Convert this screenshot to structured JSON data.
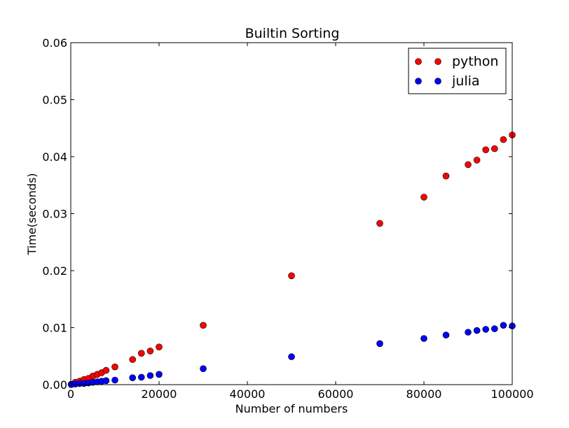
{
  "chart_data": {
    "type": "scatter",
    "title": "Builtin Sorting",
    "xlabel": "Number of numbers",
    "ylabel": "Time(seconds)",
    "xlim": [
      0,
      100000
    ],
    "ylim": [
      0,
      0.06
    ],
    "xticks": [
      0,
      20000,
      40000,
      60000,
      80000,
      100000
    ],
    "xtick_labels": [
      "0",
      "20000",
      "40000",
      "60000",
      "80000",
      "100000"
    ],
    "yticks": [
      0,
      0.01,
      0.02,
      0.03,
      0.04,
      0.05,
      0.06
    ],
    "ytick_labels": [
      "0.00",
      "0.01",
      "0.02",
      "0.03",
      "0.04",
      "0.05",
      "0.06"
    ],
    "grid": false,
    "legend": "top-right",
    "series": [
      {
        "name": "python",
        "color": "#ff0000",
        "x": [
          100,
          1000,
          2000,
          3000,
          4000,
          5000,
          6000,
          7000,
          8000,
          10000,
          14000,
          16000,
          18000,
          20000,
          30000,
          50000,
          70000,
          80000,
          85000,
          90000,
          92000,
          94000,
          96000,
          98000,
          100000
        ],
        "y": [
          5e-05,
          0.0004,
          0.0006,
          0.0009,
          0.0011,
          0.0015,
          0.0018,
          0.0021,
          0.0025,
          0.0031,
          0.0044,
          0.0055,
          0.0059,
          0.0066,
          0.0104,
          0.0191,
          0.0283,
          0.0329,
          0.0366,
          0.0386,
          0.0394,
          0.0412,
          0.0414,
          0.043,
          0.0438
        ]
      },
      {
        "name": "julia",
        "color": "#0000ff",
        "x": [
          100,
          1000,
          2000,
          3000,
          4000,
          5000,
          6000,
          7000,
          8000,
          10000,
          14000,
          16000,
          18000,
          20000,
          30000,
          50000,
          70000,
          80000,
          85000,
          90000,
          92000,
          94000,
          96000,
          98000,
          100000
        ],
        "y": [
          2e-05,
          0.0001,
          0.0002,
          0.0002,
          0.0003,
          0.0004,
          0.0005,
          0.0006,
          0.0007,
          0.0008,
          0.0012,
          0.0013,
          0.0016,
          0.0018,
          0.0028,
          0.0049,
          0.0072,
          0.0081,
          0.0087,
          0.0092,
          0.0095,
          0.0097,
          0.0098,
          0.0104,
          0.0103
        ]
      }
    ]
  }
}
